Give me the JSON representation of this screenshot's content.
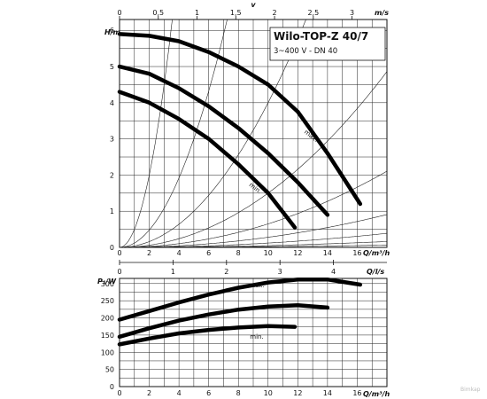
{
  "header": {
    "title": "Wilo-TOP-Z 40/7",
    "subtitle": "3~400 V - DN 40"
  },
  "watermark": "Bimkap",
  "chart_data": [
    {
      "type": "line",
      "title": "Wilo-TOP-Z 40/7",
      "subtitle": "3~400 V - DN 40",
      "ylabel": "H/m",
      "xlabel": "Q/m³/h",
      "top_axis_label": "m/s",
      "top_axis_symbol": "v",
      "xlim": [
        0,
        18
      ],
      "ylim": [
        0,
        6.3
      ],
      "x_ticks": [
        "0",
        "2",
        "4",
        "6",
        "8",
        "10",
        "12",
        "14",
        "16"
      ],
      "y_ticks": [
        "0",
        "1",
        "2",
        "3",
        "4",
        "5",
        "6"
      ],
      "top_ticks": [
        "0",
        "0,5",
        "1",
        "1,5",
        "2",
        "2,5",
        "3"
      ],
      "series": [
        {
          "name": "max.",
          "x": [
            0,
            2,
            4,
            6,
            8,
            10,
            12,
            14,
            16.2
          ],
          "y": [
            5.9,
            5.85,
            5.7,
            5.4,
            5.0,
            4.5,
            3.75,
            2.6,
            1.2
          ]
        },
        {
          "name": "",
          "x": [
            0,
            2,
            4,
            6,
            8,
            10,
            12,
            14
          ],
          "y": [
            5.0,
            4.8,
            4.4,
            3.9,
            3.3,
            2.6,
            1.8,
            0.9
          ]
        },
        {
          "name": "min.",
          "x": [
            0,
            2,
            4,
            6,
            8,
            10,
            11.8
          ],
          "y": [
            4.3,
            4.0,
            3.55,
            3.0,
            2.3,
            1.5,
            0.55
          ]
        }
      ],
      "system_curve_constants": [
        50,
        12,
        4,
        1.5,
        0.65,
        0.28,
        0.12,
        0.05,
        0.02
      ]
    },
    {
      "type": "line",
      "title": "",
      "xlabel": "Q/l/s",
      "xlim": [
        0,
        5
      ],
      "x_ticks": [
        "0",
        "1",
        "2",
        "3",
        "4"
      ],
      "note": "secondary flow axis between panels"
    },
    {
      "type": "line",
      "title": "",
      "ylabel": "P₁/W",
      "xlabel": "Q/m³/h",
      "xlim": [
        0,
        18
      ],
      "ylim": [
        0,
        315
      ],
      "x_ticks": [
        "0",
        "2",
        "4",
        "6",
        "8",
        "10",
        "12",
        "14",
        "16"
      ],
      "y_ticks": [
        "0",
        "50",
        "100",
        "150",
        "200",
        "250",
        "300"
      ],
      "series": [
        {
          "name": "max.",
          "x": [
            0,
            2,
            4,
            6,
            8,
            10,
            12,
            14,
            16.2
          ],
          "y": [
            195,
            220,
            245,
            268,
            288,
            303,
            312,
            312,
            297
          ]
        },
        {
          "name": "",
          "x": [
            0,
            2,
            4,
            6,
            8,
            10,
            12,
            14
          ],
          "y": [
            145,
            170,
            192,
            210,
            224,
            233,
            237,
            230
          ]
        },
        {
          "name": "min.",
          "x": [
            0,
            2,
            4,
            6,
            8,
            10,
            11.8
          ],
          "y": [
            123,
            140,
            155,
            165,
            172,
            176,
            174
          ]
        }
      ]
    }
  ]
}
